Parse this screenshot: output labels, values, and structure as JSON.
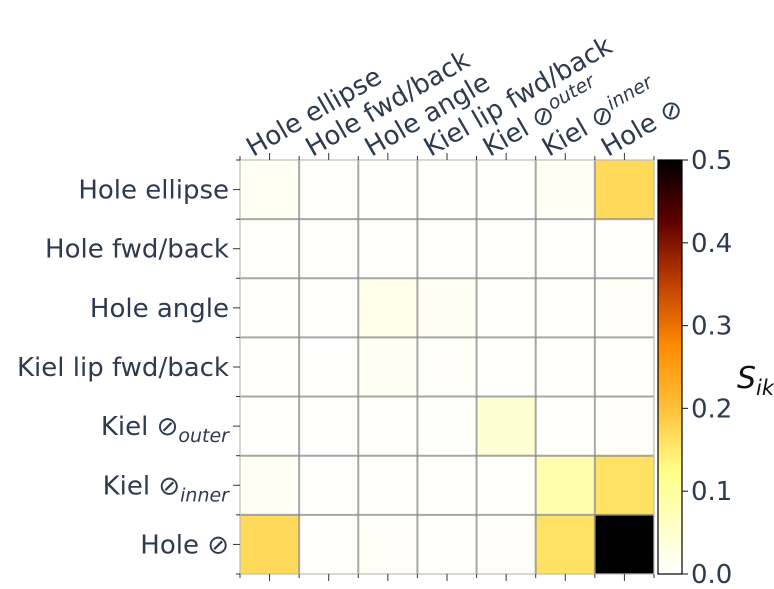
{
  "chart_data": {
    "type": "heatmap",
    "row_labels": [
      {
        "base": "Hole ellipse",
        "sub": ""
      },
      {
        "base": "Hole fwd/back",
        "sub": ""
      },
      {
        "base": "Hole angle",
        "sub": ""
      },
      {
        "base": "Kiel lip fwd/back",
        "sub": ""
      },
      {
        "base": "Kiel ⊘",
        "sub": "outer"
      },
      {
        "base": "Kiel ⊘",
        "sub": "inner"
      },
      {
        "base": "Hole ⊘",
        "sub": ""
      }
    ],
    "col_labels": [
      {
        "base": "Hole ellipse",
        "sub": ""
      },
      {
        "base": "Hole fwd/back",
        "sub": ""
      },
      {
        "base": "Hole angle",
        "sub": ""
      },
      {
        "base": "Kiel lip fwd/back",
        "sub": ""
      },
      {
        "base": "Kiel ⊘",
        "sub": "outer"
      },
      {
        "base": "Kiel ⊘",
        "sub": "inner"
      },
      {
        "base": "Hole ⊘",
        "sub": ""
      }
    ],
    "values": [
      [
        0.012,
        0.003,
        0.002,
        0.002,
        0.004,
        0.01,
        0.17
      ],
      [
        0.003,
        0.001,
        0.001,
        0.001,
        0.001,
        0.002,
        0.002
      ],
      [
        0.002,
        0.001,
        0.025,
        0.01,
        0.003,
        0.004,
        0.008
      ],
      [
        0.002,
        0.001,
        0.01,
        0.008,
        0.002,
        0.003,
        0.004
      ],
      [
        0.004,
        0.001,
        0.003,
        0.006,
        0.045,
        0.004,
        0.008
      ],
      [
        0.01,
        0.002,
        0.004,
        0.003,
        0.004,
        0.085,
        0.16
      ],
      [
        0.17,
        0.003,
        0.008,
        0.004,
        0.008,
        0.16,
        0.5
      ]
    ],
    "colorbar": {
      "colormap": "afmhot_r",
      "vmin": 0.0,
      "vmax": 0.5,
      "ticks": [
        "0.0",
        "0.1",
        "0.2",
        "0.3",
        "0.4",
        "0.5"
      ],
      "label_base": "S",
      "label_sub": "ik"
    },
    "grid": true
  }
}
